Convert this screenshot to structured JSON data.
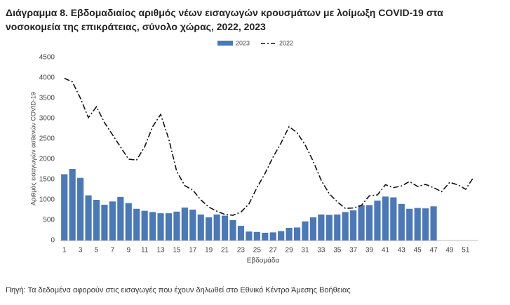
{
  "chart_data": {
    "type": "bar-line",
    "title": "Διάγραμμα 8. Εβδομαδιαίος αριθμός νέων εισαγωγών κρουσμάτων με λοίμωξη COVID-19 στα νοσοκομεία της επικράτειας, σύνολο χώρας, 2022, 2023",
    "y_label": "Αριθμός εισαγωγών ασθενών COVID-19",
    "x_label": "Εβδομάδα",
    "source": "Πηγή: Τα δεδομένα αφορούν στις εισαγωγές που έχουν δηλωθεί στο Εθνικό Κέντρο Άμεσης Βοήθειας",
    "categories": [
      1,
      null,
      3,
      null,
      5,
      null,
      7,
      null,
      9,
      null,
      11,
      null,
      13,
      null,
      15,
      null,
      17,
      null,
      19,
      null,
      21,
      null,
      23,
      null,
      25,
      null,
      27,
      null,
      29,
      null,
      31,
      null,
      33,
      null,
      35,
      null,
      37,
      null,
      39,
      null,
      41,
      null,
      43,
      null,
      45,
      null,
      47,
      null,
      49,
      null,
      51,
      null
    ],
    "ylim": [
      0,
      4500
    ],
    "yticks": [
      0,
      500,
      1000,
      1500,
      2000,
      2500,
      3000,
      3500,
      4000,
      4500
    ],
    "series": [
      {
        "name": "2023",
        "kind": "bar",
        "color": "#4a78b8",
        "values": [
          1630,
          1760,
          1540,
          1110,
          1000,
          880,
          960,
          1070,
          920,
          780,
          730,
          700,
          670,
          670,
          710,
          810,
          760,
          640,
          570,
          640,
          610,
          500,
          360,
          220,
          210,
          190,
          200,
          230,
          310,
          320,
          470,
          570,
          640,
          630,
          640,
          700,
          740,
          870,
          870,
          980,
          1080,
          1060,
          900,
          780,
          800,
          790,
          840,
          null,
          null,
          null,
          null,
          null
        ]
      },
      {
        "name": "2022",
        "kind": "line",
        "color": "#111111",
        "values": [
          3990,
          3900,
          3500,
          3020,
          3290,
          2900,
          2600,
          2300,
          2000,
          1980,
          2300,
          2800,
          3100,
          2500,
          1700,
          1350,
          1240,
          1000,
          820,
          720,
          640,
          620,
          700,
          900,
          1300,
          1650,
          2050,
          2400,
          2800,
          2650,
          2350,
          1950,
          1480,
          1150,
          950,
          790,
          800,
          860,
          1100,
          1120,
          1370,
          1300,
          1340,
          1450,
          1330,
          1380,
          1300,
          1200,
          1430,
          1370,
          1260,
          1560
        ]
      }
    ]
  }
}
